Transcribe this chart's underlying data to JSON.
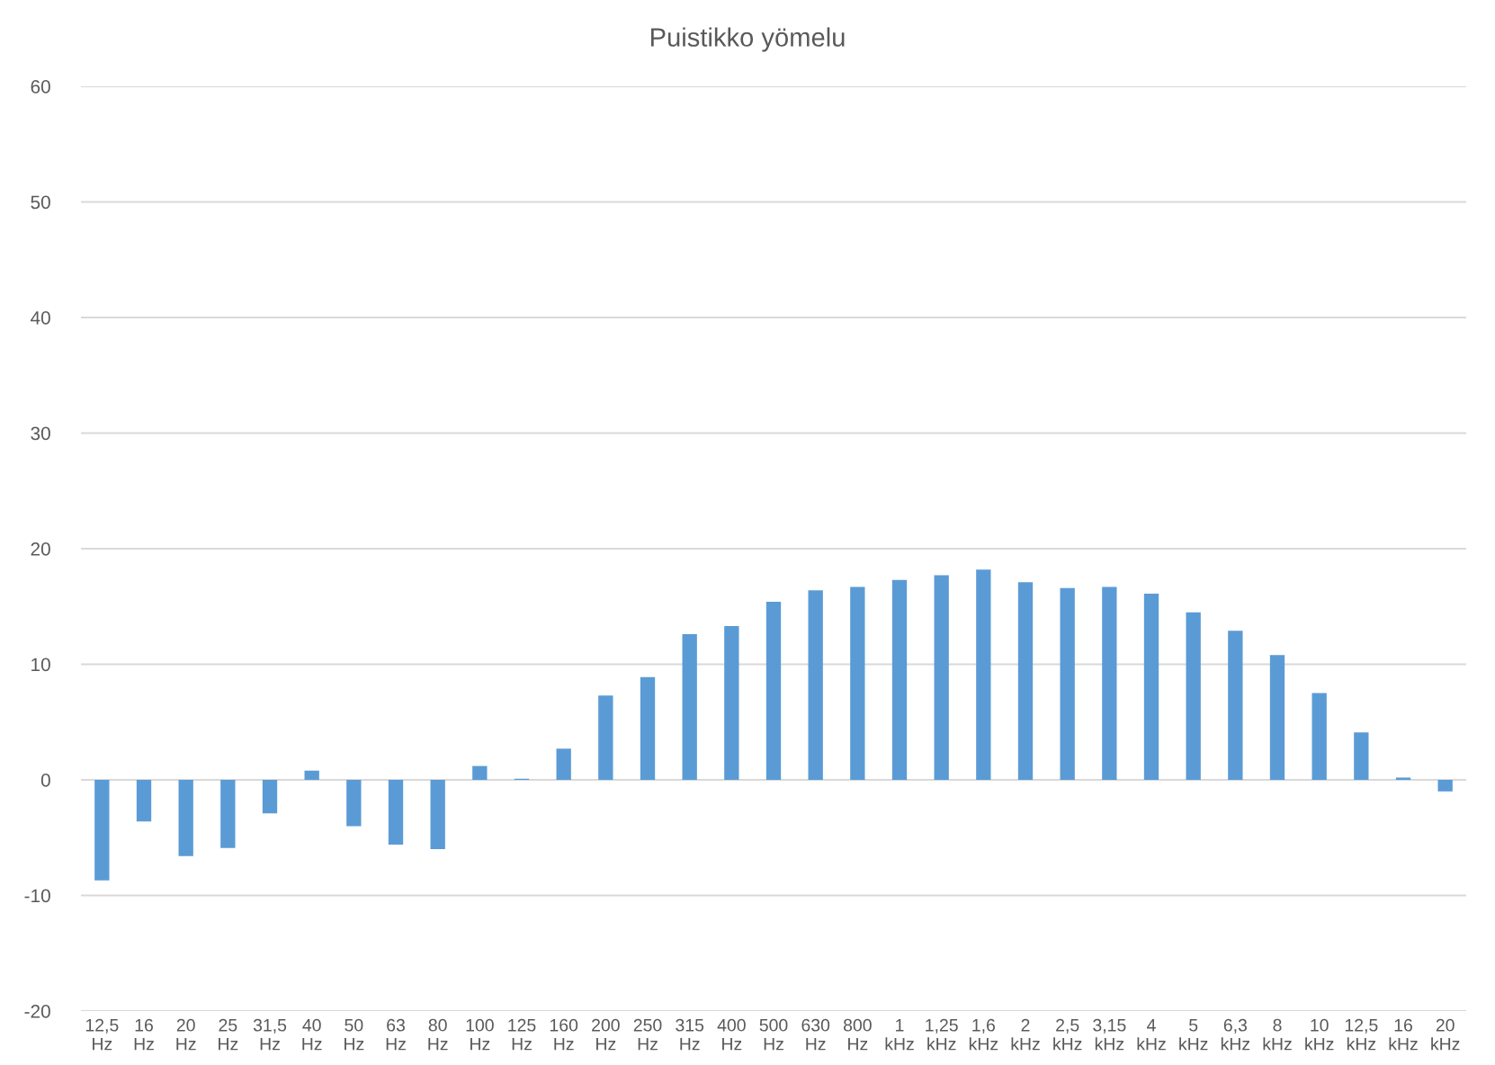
{
  "chart_data": {
    "type": "bar",
    "title": "Puistikko yömelu",
    "categories": [
      "12,5\nHz",
      "16\nHz",
      "20\nHz",
      "25\nHz",
      "31,5\nHz",
      "40\nHz",
      "50\nHz",
      "63\nHz",
      "80\nHz",
      "100\nHz",
      "125\nHz",
      "160\nHz",
      "200\nHz",
      "250\nHz",
      "315\nHz",
      "400\nHz",
      "500\nHz",
      "630\nHz",
      "800\nHz",
      "1\nkHz",
      "1,25\nkHz",
      "1,6\nkHz",
      "2\nkHz",
      "2,5\nkHz",
      "3,15\nkHz",
      "4\nkHz",
      "5\nkHz",
      "6,3\nkHz",
      "8\nkHz",
      "10\nkHz",
      "12,5\nkHz",
      "16\nkHz",
      "20\nkHz"
    ],
    "values": [
      -8.7,
      -3.6,
      -6.6,
      -5.9,
      -2.9,
      0.8,
      -4.0,
      -5.6,
      -6.0,
      1.2,
      0.1,
      2.7,
      7.3,
      8.9,
      12.6,
      13.3,
      15.4,
      16.4,
      16.7,
      17.3,
      17.7,
      18.2,
      17.1,
      16.6,
      16.7,
      16.1,
      14.5,
      12.9,
      10.8,
      7.5,
      4.1,
      0.2,
      -1.0
    ],
    "color": "#5b9bd5",
    "ylim": [
      -20,
      60
    ],
    "yticks": [
      -20,
      -10,
      0,
      10,
      20,
      30,
      40,
      50,
      60
    ],
    "grid": "y"
  }
}
